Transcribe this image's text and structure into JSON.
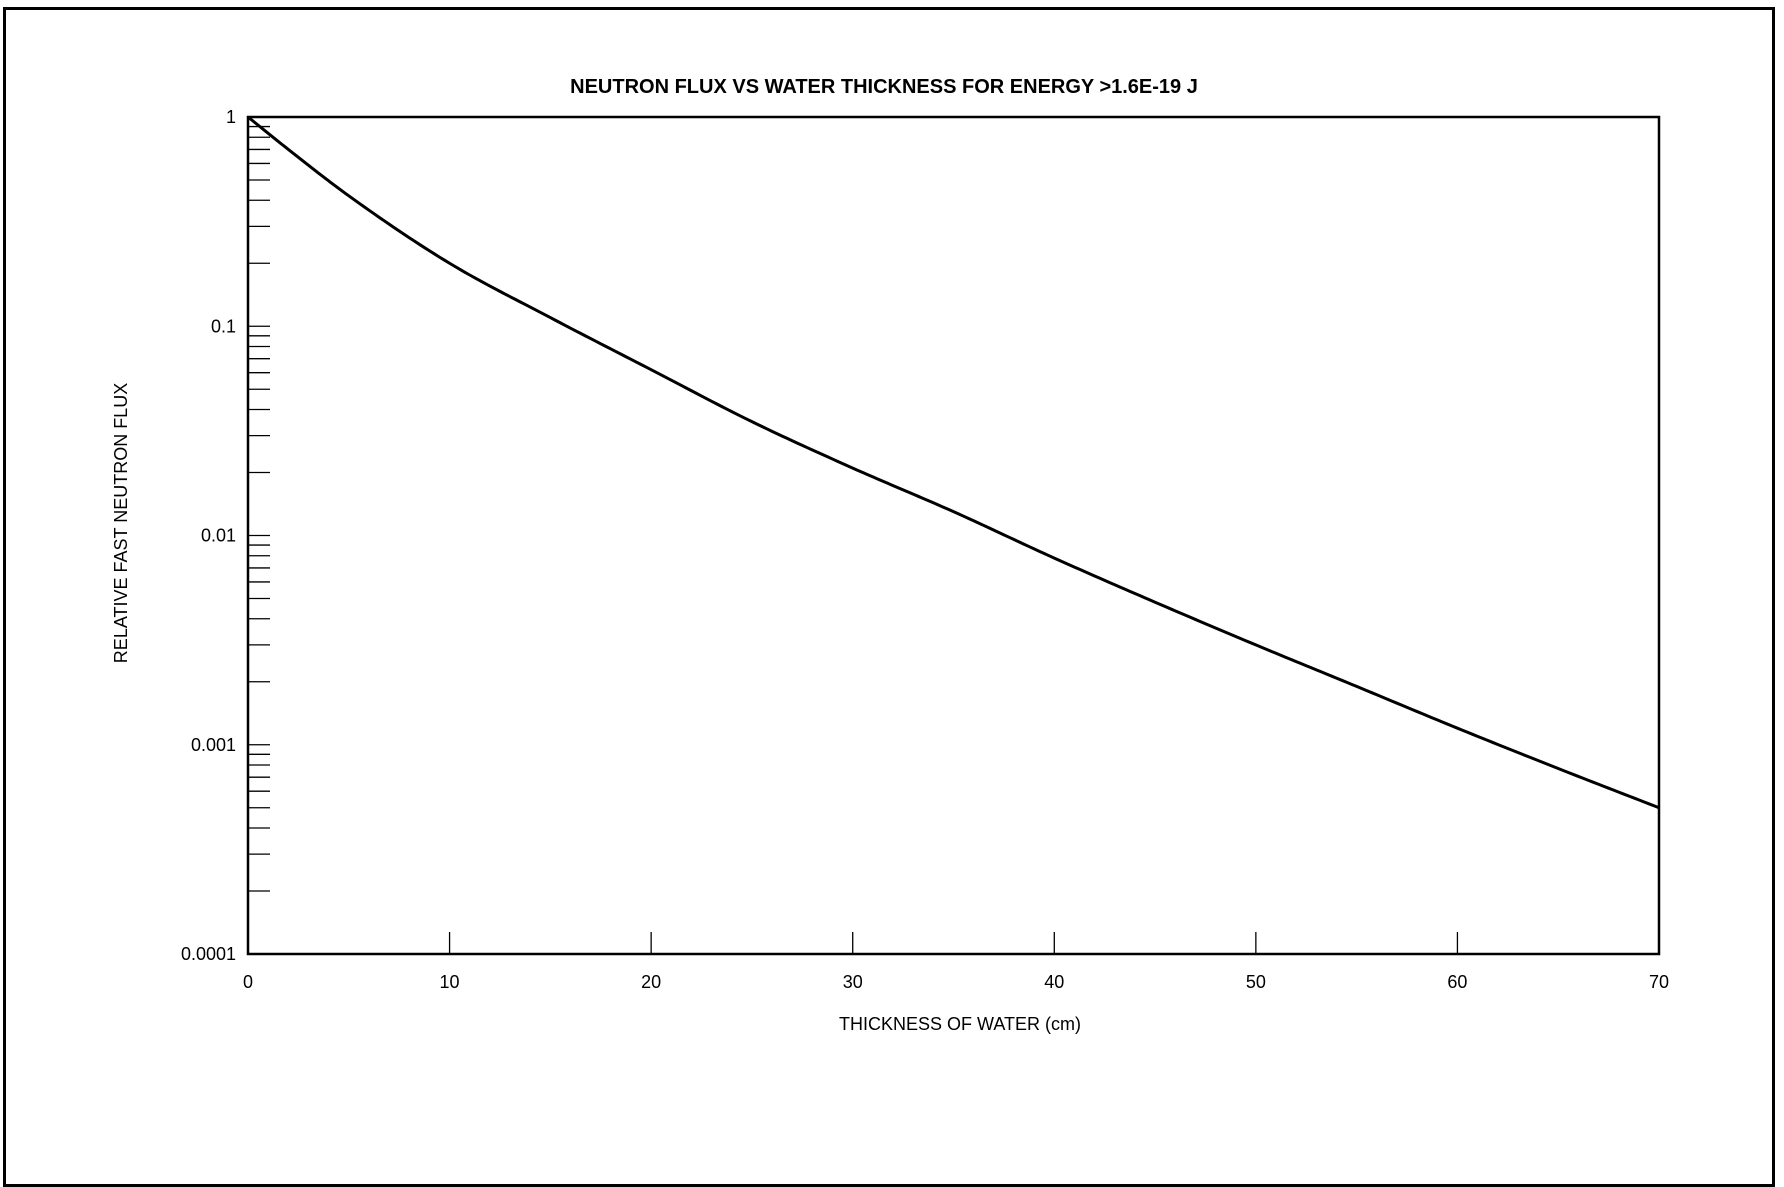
{
  "chart_data": {
    "type": "line",
    "title": "NEUTRON FLUX VS WATER THICKNESS FOR ENERGY >1.6E-19 J",
    "xlabel": "THICKNESS OF WATER (cm)",
    "ylabel": "RELATIVE FAST NEUTRON FLUX",
    "xlim": [
      0,
      70
    ],
    "ylim": [
      0.0001,
      1
    ],
    "yscale": "log",
    "grid": false,
    "x_ticks": [
      "0",
      "10",
      "20",
      "30",
      "40",
      "50",
      "60",
      "70"
    ],
    "y_ticks": [
      "1",
      "0.1",
      "0.01",
      "0.001",
      "0.0001"
    ],
    "series": [
      {
        "x": [
          0,
          2,
          5,
          10,
          15,
          20,
          25,
          30,
          35,
          40,
          45,
          50,
          55,
          60,
          65,
          70
        ],
        "y": [
          1,
          0.7,
          0.42,
          0.2,
          0.11,
          0.062,
          0.035,
          0.021,
          0.013,
          0.0078,
          0.0048,
          0.003,
          0.0019,
          0.0012,
          0.00077,
          0.0005
        ]
      }
    ],
    "colors": {
      "line": "#000000",
      "axes": "#000000",
      "background": "#ffffff"
    }
  }
}
